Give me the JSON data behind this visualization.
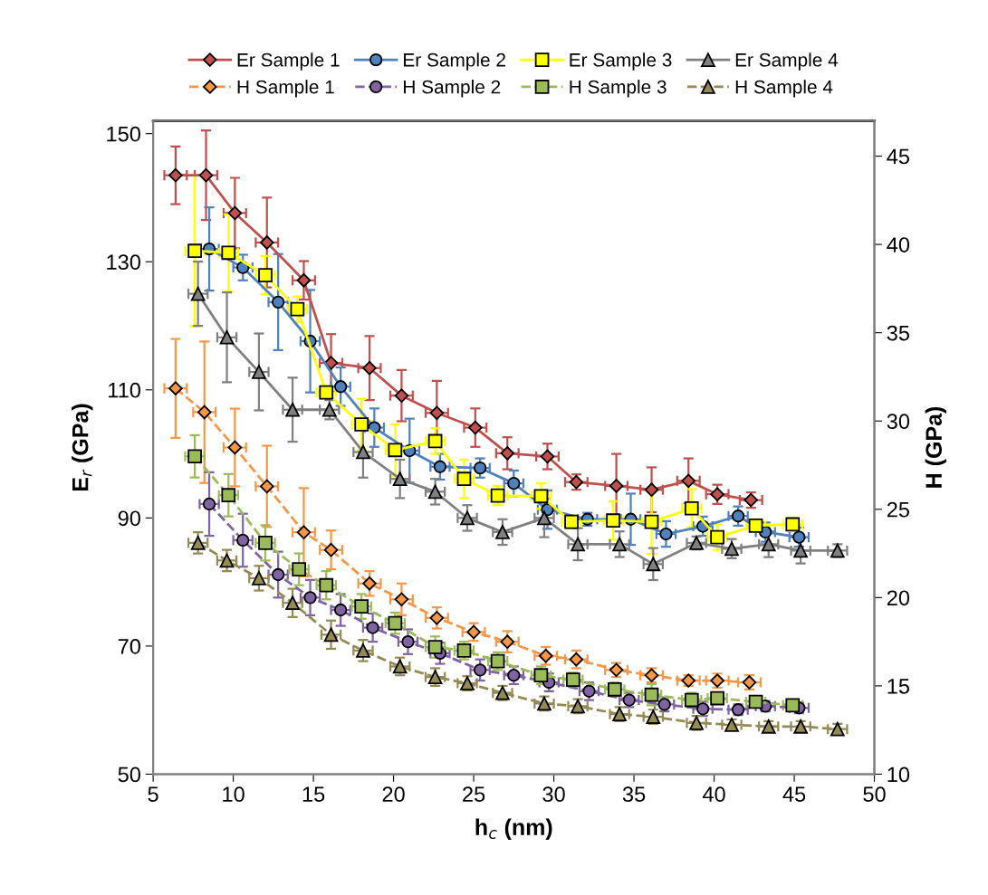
{
  "chart_data": {
    "type": "line",
    "xlabel": "h$_{c}$ (nm)",
    "ylabel": "E$_{r}$ (GPa)",
    "y2label": "H (GPa)",
    "xlim": [
      5,
      50
    ],
    "xticks": [
      5,
      10,
      15,
      20,
      25,
      30,
      35,
      40,
      45,
      50
    ],
    "ylim": [
      50,
      152
    ],
    "yticks": [
      50,
      70,
      90,
      110,
      130,
      150
    ],
    "y2lim": [
      10,
      47
    ],
    "y2ticks": [
      10,
      15,
      20,
      25,
      30,
      35,
      40,
      45
    ],
    "legend": "top",
    "grid": false,
    "series": [
      {
        "name": "Er Sample 1",
        "color": "#c0504d",
        "marker": "diamond",
        "line_style": "solid",
        "x": [
          6.4,
          8.3,
          10.1,
          12.1,
          14.4,
          16.1,
          18.5,
          20.5,
          22.7,
          25.1,
          27.1,
          29.6,
          31.4,
          33.9,
          36.1,
          38.4,
          40.2,
          42.3
        ],
        "values": [
          143.5,
          143.5,
          137.6,
          133.0,
          127.1,
          114.2,
          113.4,
          109.1,
          106.4,
          104.1,
          100.1,
          99.6,
          95.6,
          95.0,
          94.4,
          95.8,
          93.7,
          92.8
        ],
        "errors": [
          4.5,
          7,
          5.5,
          7,
          3,
          4.5,
          5,
          4,
          5,
          3,
          2.5,
          2,
          1.2,
          5,
          3.5,
          3.5,
          1.5,
          1.2
        ],
        "xerrors": [
          0.7,
          0.7,
          0.7,
          0.7,
          0.7,
          0.7,
          0.7,
          0.7,
          0.7,
          0.7,
          0.7,
          0.7,
          0.7,
          0.7,
          0.7,
          0.7,
          0.7,
          0.7
        ]
      },
      {
        "name": "Er Sample 2",
        "color": "#4f81bd",
        "marker": "circle",
        "line_style": "solid",
        "x": [
          8.5,
          10.6,
          12.8,
          14.8,
          16.7,
          18.8,
          21.0,
          22.9,
          25.4,
          27.5,
          29.6,
          32.1,
          34.8,
          37.0,
          39.3,
          41.5,
          43.2,
          45.3
        ],
        "values": [
          132.0,
          129.1,
          123.7,
          117.6,
          110.5,
          104.1,
          100.5,
          98.0,
          97.8,
          95.4,
          91.3,
          89.8,
          89.8,
          87.5,
          88.7,
          90.3,
          87.8,
          87.0
        ],
        "errors": [
          6.5,
          2,
          7.5,
          8,
          3,
          3,
          5,
          2,
          1.5,
          2,
          3,
          1,
          4,
          2,
          1.5,
          1.5,
          1.5,
          1.5
        ],
        "xerrors": [
          0.6,
          0.6,
          0.6,
          0.6,
          0.6,
          0.6,
          0.6,
          0.6,
          0.6,
          0.6,
          0.6,
          0.6,
          0.6,
          0.6,
          0.6,
          0.6,
          0.6,
          0.6
        ]
      },
      {
        "name": "Er Sample 3",
        "color": "#ffff00",
        "marker": "square",
        "line_style": "solid",
        "x": [
          7.6,
          9.7,
          12.0,
          14.0,
          15.8,
          18.0,
          20.1,
          22.6,
          24.4,
          26.5,
          29.2,
          31.1,
          33.7,
          36.1,
          38.6,
          40.2,
          42.6,
          44.9
        ],
        "values": [
          131.7,
          131.4,
          127.9,
          122.6,
          109.6,
          104.6,
          100.6,
          102.0,
          96.1,
          93.5,
          93.4,
          89.4,
          89.6,
          89.4,
          91.5,
          87.0,
          88.8,
          89.0
        ],
        "errors": [
          11.8,
          6,
          3,
          2,
          1,
          4,
          4,
          2,
          3,
          1.5,
          2,
          1,
          3,
          5,
          3,
          2,
          1,
          1
        ],
        "xerrors": [
          0.6,
          0.6,
          0.6,
          0.6,
          0.6,
          0.6,
          0.6,
          0.6,
          0.6,
          0.6,
          0.6,
          0.6,
          0.6,
          0.6,
          0.6,
          0.6,
          0.6,
          0.6
        ]
      },
      {
        "name": "Er Sample 4",
        "color": "#808080",
        "marker": "triangle",
        "line_style": "solid",
        "x": [
          7.8,
          9.6,
          11.6,
          13.7,
          16.0,
          18.1,
          20.4,
          22.6,
          24.6,
          26.8,
          29.4,
          31.5,
          34.1,
          36.2,
          38.9,
          41.1,
          43.4,
          45.4,
          47.7
        ],
        "values": [
          125.0,
          118.2,
          112.8,
          106.9,
          106.9,
          100.3,
          96.1,
          94.1,
          90.0,
          87.8,
          90.0,
          85.9,
          85.9,
          82.8,
          86.1,
          85.2,
          85.9,
          84.9,
          84.9
        ],
        "errors": [
          5,
          7,
          6,
          5,
          1.5,
          4,
          3,
          2,
          2,
          2,
          3,
          2.5,
          2,
          2.5,
          1,
          1.5,
          2,
          2,
          1
        ],
        "xerrors": [
          0.6,
          0.6,
          0.6,
          0.6,
          0.6,
          0.6,
          0.6,
          0.6,
          0.6,
          0.6,
          0.6,
          0.6,
          0.6,
          0.6,
          0.6,
          0.6,
          0.6,
          0.6,
          0.6
        ]
      },
      {
        "name": "H Sample 1",
        "color": "#f79646",
        "marker": "diamond",
        "line_style": "dashed",
        "axis": "y2",
        "x": [
          6.4,
          8.2,
          10.1,
          12.1,
          14.4,
          16.1,
          18.5,
          20.5,
          22.7,
          25.0,
          27.1,
          29.5,
          31.4,
          33.9,
          36.1,
          38.4,
          40.2,
          42.2
        ],
        "values": [
          31.85,
          30.5,
          28.5,
          26.3,
          23.7,
          22.7,
          20.8,
          19.9,
          18.85,
          18.05,
          17.5,
          16.7,
          16.5,
          15.9,
          15.6,
          15.3,
          15.3,
          15.2
        ],
        "errors": [
          2.8,
          4,
          2.2,
          2.3,
          2.5,
          1.1,
          0.7,
          0.9,
          0.6,
          0.5,
          0.6,
          0.5,
          0.5,
          0.4,
          0.4,
          0.3,
          0.4,
          0.4
        ],
        "xerrors": [
          0.7,
          0.7,
          0.7,
          0.7,
          0.7,
          0.7,
          0.7,
          0.7,
          0.7,
          0.7,
          0.7,
          0.7,
          0.7,
          0.7,
          0.7,
          0.7,
          0.7,
          0.7
        ]
      },
      {
        "name": "H Sample 2",
        "color": "#8064a2",
        "marker": "circle",
        "line_style": "dashed",
        "axis": "y2",
        "x": [
          8.5,
          10.6,
          12.8,
          14.8,
          16.7,
          18.7,
          20.9,
          22.9,
          25.4,
          27.5,
          29.7,
          32.2,
          34.7,
          36.9,
          39.3,
          41.5,
          43.2,
          45.3
        ],
        "values": [
          25.3,
          23.25,
          21.3,
          20.0,
          19.3,
          18.3,
          17.5,
          16.85,
          15.9,
          15.6,
          15.2,
          14.7,
          14.2,
          13.95,
          13.7,
          13.65,
          13.85,
          13.75
        ],
        "errors": [
          1.8,
          1.5,
          1.3,
          1,
          0.9,
          0.8,
          0.7,
          0.6,
          0.6,
          0.5,
          0.5,
          0.5,
          0.4,
          0.4,
          0.4,
          0.3,
          0.3,
          0.3
        ],
        "xerrors": [
          0.6,
          0.6,
          0.6,
          0.6,
          0.6,
          0.6,
          0.6,
          0.6,
          0.6,
          0.6,
          0.6,
          0.6,
          0.6,
          0.6,
          0.6,
          0.6,
          0.6,
          0.6
        ]
      },
      {
        "name": "H Sample 3",
        "color": "#9bbb59",
        "marker": "square",
        "line_style": "dashed",
        "axis": "y2",
        "x": [
          7.6,
          9.7,
          12.0,
          14.1,
          15.8,
          18.0,
          20.1,
          22.6,
          24.4,
          26.5,
          29.2,
          31.2,
          33.8,
          36.1,
          38.6,
          40.2,
          42.6,
          44.9
        ],
        "values": [
          28.0,
          25.8,
          23.1,
          21.6,
          20.7,
          19.5,
          18.55,
          17.2,
          17.0,
          16.4,
          15.6,
          15.35,
          14.8,
          14.5,
          14.2,
          14.3,
          14.1,
          13.9
        ],
        "errors": [
          1.2,
          1.2,
          1.0,
          0.9,
          0.8,
          0.7,
          0.6,
          0.6,
          0.5,
          0.5,
          0.5,
          0.4,
          0.4,
          0.6,
          0.4,
          0.3,
          0.3,
          0.3
        ],
        "xerrors": [
          0.6,
          0.6,
          0.6,
          0.6,
          0.6,
          0.6,
          0.6,
          0.6,
          0.6,
          0.6,
          0.6,
          0.6,
          0.6,
          0.6,
          0.6,
          0.6,
          0.6,
          0.6
        ]
      },
      {
        "name": "H Sample 4",
        "color": "#948a54",
        "marker": "triangle",
        "line_style": "dashed",
        "axis": "y2",
        "x": [
          7.8,
          9.6,
          11.6,
          13.7,
          16.1,
          18.1,
          20.4,
          22.6,
          24.6,
          26.8,
          29.4,
          31.5,
          34.1,
          36.2,
          38.9,
          41.1,
          43.4,
          45.4,
          47.7
        ],
        "values": [
          23.1,
          22.1,
          21.1,
          19.7,
          17.9,
          17.0,
          16.1,
          15.5,
          15.15,
          14.6,
          14.0,
          13.85,
          13.4,
          13.25,
          12.9,
          12.8,
          12.7,
          12.7,
          12.55
        ],
        "errors": [
          0.6,
          0.6,
          0.7,
          0.8,
          0.8,
          0.6,
          0.5,
          0.5,
          0.4,
          0.4,
          0.4,
          0.4,
          0.4,
          0.4,
          0.4,
          0.3,
          0.3,
          0.3,
          0.3
        ],
        "xerrors": [
          0.6,
          0.6,
          0.6,
          0.6,
          0.6,
          0.6,
          0.6,
          0.6,
          0.6,
          0.6,
          0.6,
          0.6,
          0.6,
          0.6,
          0.6,
          0.6,
          0.6,
          0.6,
          0.6
        ]
      }
    ]
  }
}
